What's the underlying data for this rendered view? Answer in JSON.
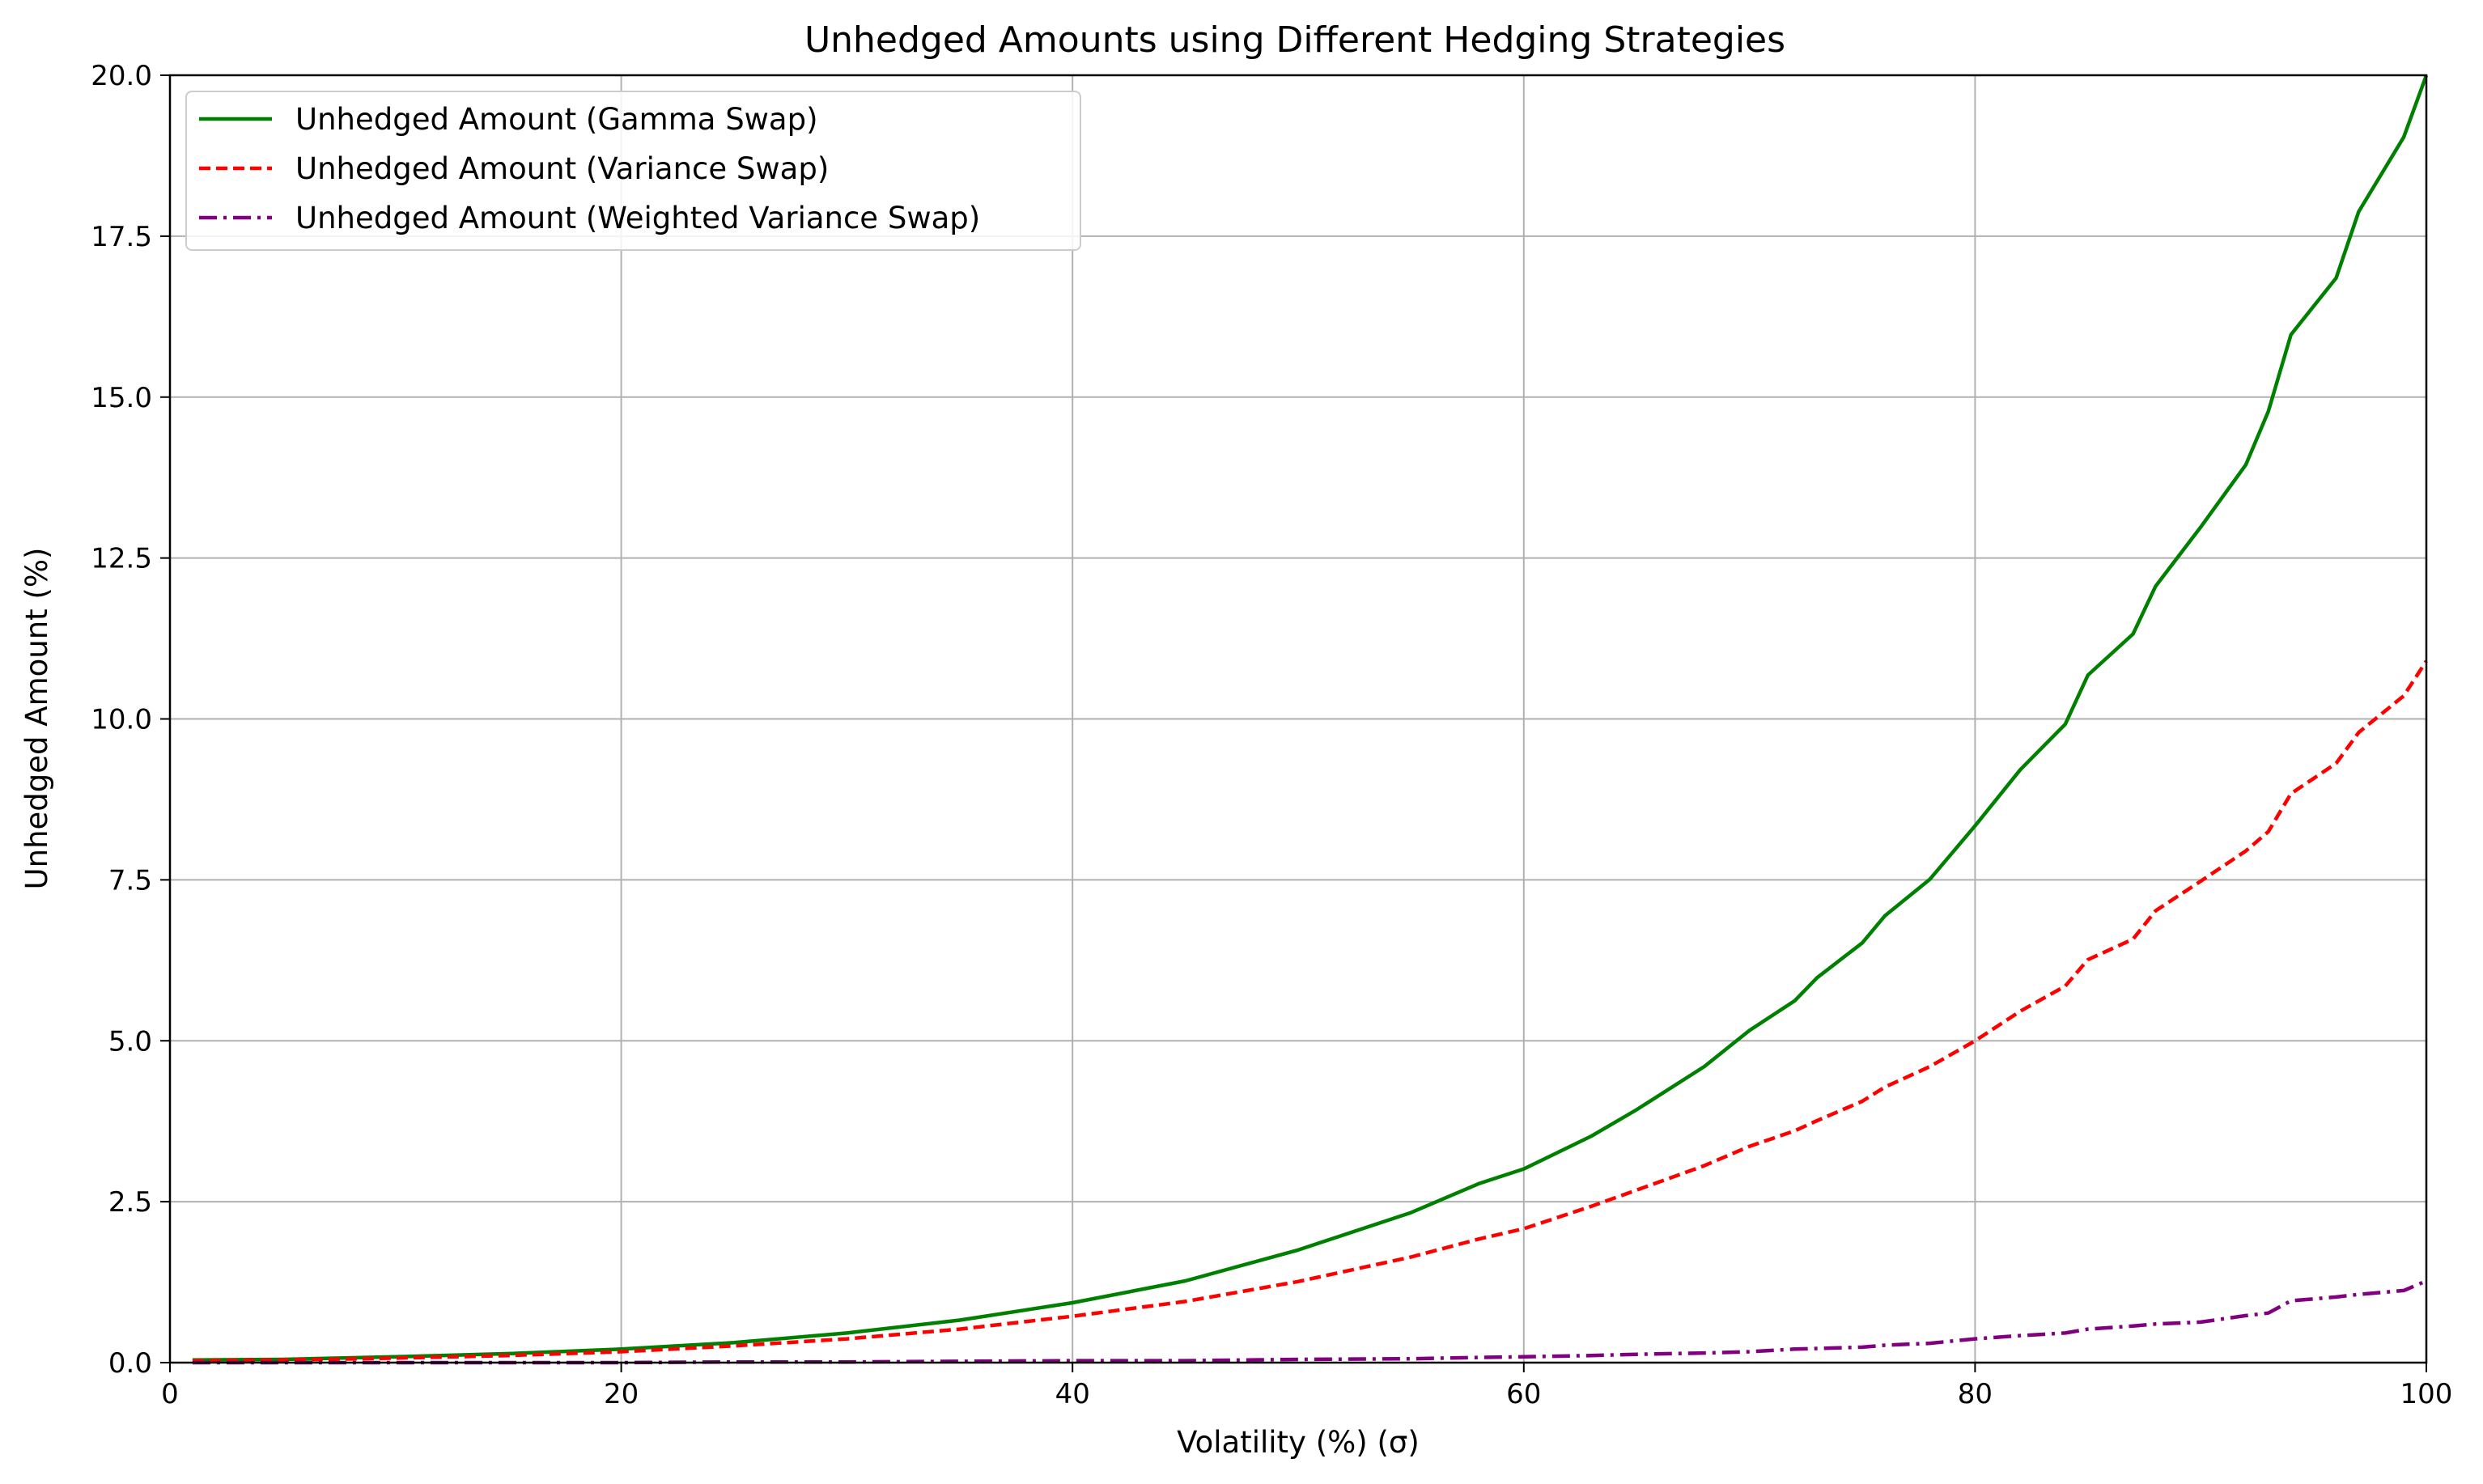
{
  "chart_data": {
    "type": "line",
    "title": "Unhedged Amounts using Different Hedging Strategies",
    "xlabel": "Volatility (%) (σ)",
    "ylabel": "Unhedged Amount (%)",
    "xlim": [
      0,
      100
    ],
    "ylim": [
      0,
      20
    ],
    "x_ticks": [
      0,
      20,
      40,
      60,
      80,
      100
    ],
    "x_tick_labels": [
      "0",
      "20",
      "40",
      "60",
      "80",
      "100"
    ],
    "y_ticks": [
      0,
      2.5,
      5,
      7.5,
      10,
      12.5,
      15,
      17.5,
      20
    ],
    "y_tick_labels": [
      "0.0",
      "2.5",
      "5.0",
      "7.5",
      "10.0",
      "12.5",
      "15.0",
      "17.5",
      "20.0"
    ],
    "grid": true,
    "legend_position": "upper-left",
    "x": [
      1,
      5,
      10,
      15,
      20,
      25,
      30,
      35,
      40,
      45,
      50,
      55,
      58,
      60,
      63,
      65,
      68,
      70,
      72,
      73,
      75,
      76,
      78,
      80,
      82,
      84,
      85,
      87,
      88,
      90,
      92,
      93,
      94,
      96,
      97,
      99,
      100
    ],
    "series": [
      {
        "name": "Unhedged Amount (Gamma Swap)",
        "color": "#008000",
        "dash": "solid",
        "values": [
          0.04,
          0.05,
          0.09,
          0.14,
          0.21,
          0.31,
          0.46,
          0.66,
          0.93,
          1.27,
          1.75,
          2.33,
          2.78,
          3.01,
          3.52,
          3.93,
          4.6,
          5.16,
          5.62,
          5.98,
          6.52,
          6.94,
          7.51,
          8.34,
          9.21,
          9.92,
          10.68,
          11.32,
          12.06,
          12.98,
          13.95,
          14.78,
          15.97,
          16.85,
          17.88,
          19.04,
          20.1
        ]
      },
      {
        "name": "Unhedged Amount (Variance Swap)",
        "color": "#ff0000",
        "dash": "dashed",
        "values": [
          0.03,
          0.04,
          0.07,
          0.11,
          0.17,
          0.26,
          0.37,
          0.52,
          0.72,
          0.95,
          1.26,
          1.64,
          1.92,
          2.08,
          2.43,
          2.68,
          3.06,
          3.36,
          3.6,
          3.76,
          4.06,
          4.28,
          4.6,
          5.0,
          5.46,
          5.85,
          6.26,
          6.58,
          7.02,
          7.48,
          7.95,
          8.25,
          8.84,
          9.31,
          9.79,
          10.36,
          10.9
        ]
      },
      {
        "name": "Unhedged Amount (Weighted Variance Swap)",
        "color": "#800080",
        "dash": "dashdot",
        "values": [
          0.0,
          0.0,
          0.0,
          0.0,
          0.0,
          0.01,
          0.01,
          0.02,
          0.03,
          0.03,
          0.05,
          0.06,
          0.08,
          0.09,
          0.11,
          0.13,
          0.15,
          0.17,
          0.21,
          0.22,
          0.24,
          0.27,
          0.3,
          0.37,
          0.42,
          0.46,
          0.52,
          0.57,
          0.6,
          0.63,
          0.73,
          0.77,
          0.96,
          1.02,
          1.06,
          1.12,
          1.27
        ]
      }
    ]
  }
}
